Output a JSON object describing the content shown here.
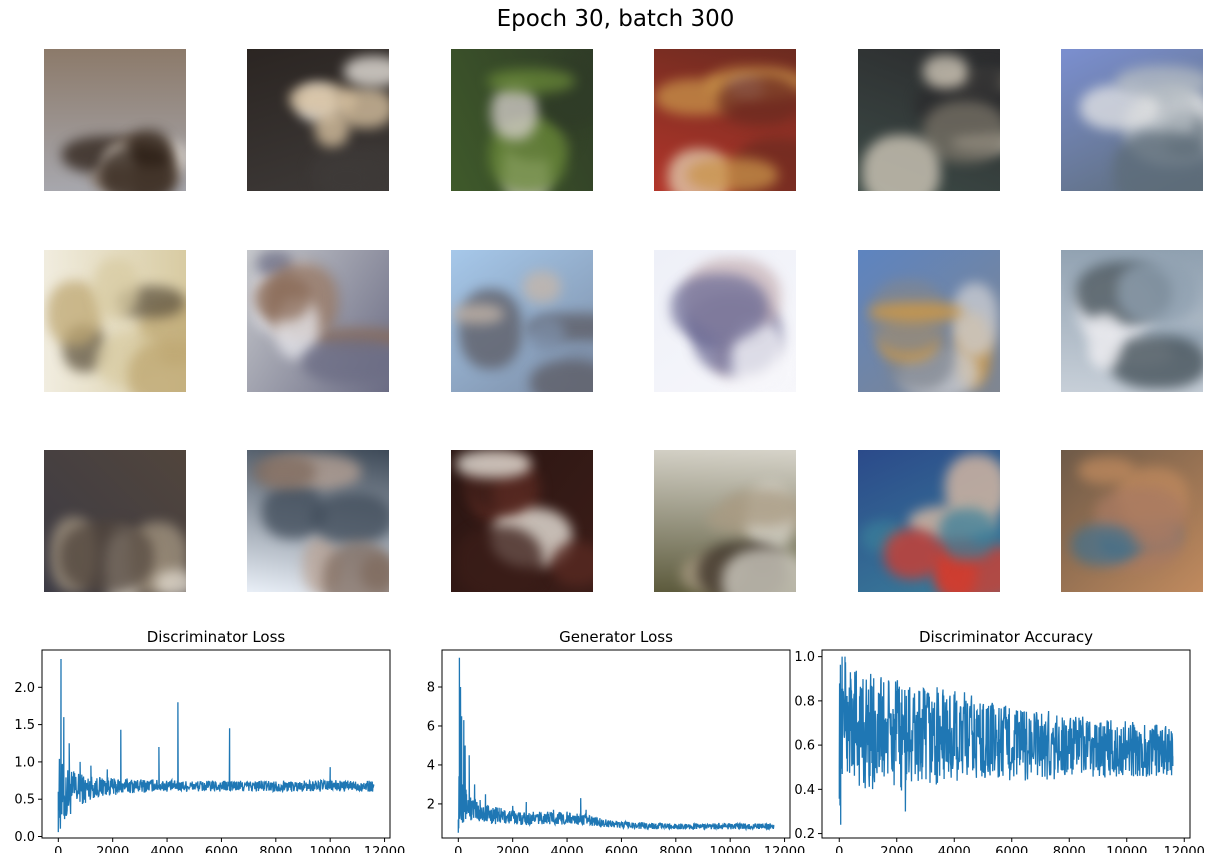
{
  "suptitle": "Epoch 30, batch 300",
  "samples": {
    "rows": 3,
    "cols": 6,
    "palettes": [
      [
        "#a7a7ad",
        "#2a1d14",
        "#e8e2da",
        "#8c7a6a"
      ],
      [
        "#2b2522",
        "#e0c9a6",
        "#f2ede6",
        "#3e3a38"
      ],
      [
        "#3f5a2a",
        "#6a8a38",
        "#d9d2cf",
        "#2f3b27"
      ],
      [
        "#b2352a",
        "#c9944a",
        "#e4d3b5",
        "#6c2b20"
      ],
      [
        "#3c4a46",
        "#d9d0c0",
        "#7a7468",
        "#2b2b2d"
      ],
      [
        "#7b8fd0",
        "#b7bec4",
        "#e6e6e6",
        "#5d6c78"
      ],
      [
        "#f1ede0",
        "#bfa873",
        "#5f5440",
        "#d8cba2"
      ],
      [
        "#c6c8cc",
        "#8a6a56",
        "#e9e9ee",
        "#6b6c84"
      ],
      [
        "#a6c8ea",
        "#5c5b63",
        "#c7b7a9",
        "#7c8da6"
      ],
      [
        "#eef0f8",
        "#6e6d96",
        "#c9b4b8",
        "#f7f7fb"
      ],
      [
        "#5d84c0",
        "#d79a3c",
        "#cfd0d4",
        "#808690"
      ],
      [
        "#c7cfd8",
        "#eaeaee",
        "#3d4a52",
        "#8fa0b0"
      ],
      [
        "#3c3b45",
        "#e6dfd3",
        "#a69883",
        "#51453c"
      ],
      [
        "#e9eff7",
        "#7f6a5d",
        "#b9a395",
        "#3e4a58"
      ],
      [
        "#2a1512",
        "#5a2a22",
        "#f5f1e8",
        "#3b1d18"
      ],
      [
        "#5c5a3c",
        "#a99b83",
        "#3a2f26",
        "#d6d3c9"
      ],
      [
        "#2b4a8a",
        "#d83a2a",
        "#e6c0a4",
        "#3a7f9a"
      ],
      [
        "#6e5a48",
        "#44708a",
        "#a97a62",
        "#c08a5e"
      ]
    ]
  },
  "colors": {
    "line": "#1f77b4",
    "axis": "#000000"
  },
  "chart_data": [
    {
      "type": "line",
      "title": "Discriminator Loss",
      "xlabel": "",
      "ylabel": "",
      "xlim": [
        -600,
        12200
      ],
      "ylim": [
        -0.02,
        2.5
      ],
      "xticks": [
        0,
        2000,
        4000,
        6000,
        8000,
        10000,
        12000
      ],
      "yticks": [
        0.0,
        0.5,
        1.0,
        1.5,
        2.0
      ],
      "ytick_labels": [
        "0.0",
        "0.5",
        "1.0",
        "1.5",
        "2.0"
      ],
      "grid": false,
      "series": [
        {
          "x": [
            0,
            50,
            100,
            150,
            200,
            300,
            400,
            500,
            600,
            700,
            800,
            1000,
            1200,
            1500,
            1800,
            2000,
            2300,
            2600,
            3000,
            3500,
            3700,
            4000,
            4400,
            5000,
            5500,
            6000,
            6300,
            7000,
            8000,
            9000,
            10000,
            10600,
            11000,
            11600
          ],
          "y": [
            0.6,
            0.25,
            2.38,
            0.5,
            1.6,
            0.5,
            1.25,
            0.55,
            0.85,
            0.55,
            1.0,
            0.45,
            0.95,
            0.6,
            0.9,
            0.7,
            1.43,
            0.6,
            0.72,
            0.7,
            1.2,
            0.62,
            1.8,
            0.68,
            0.65,
            0.66,
            1.45,
            0.68,
            0.67,
            0.68,
            0.93,
            0.68,
            0.7,
            0.68
          ],
          "band_low": [
            0.05,
            0.05,
            0.05,
            0.08,
            0.1,
            0.15,
            0.25,
            0.3,
            0.35,
            0.4,
            0.42,
            0.45,
            0.5,
            0.52,
            0.55,
            0.55,
            0.56,
            0.58,
            0.58,
            0.6,
            0.6,
            0.6,
            0.6,
            0.6,
            0.6,
            0.6,
            0.6,
            0.6,
            0.6,
            0.6,
            0.6,
            0.6,
            0.6,
            0.6
          ],
          "band_high": [
            0.95,
            1.1,
            1.05,
            1.0,
            1.0,
            0.95,
            0.92,
            0.9,
            0.88,
            0.86,
            0.85,
            0.83,
            0.82,
            0.8,
            0.8,
            0.78,
            0.78,
            0.78,
            0.77,
            0.77,
            0.76,
            0.76,
            0.75,
            0.75,
            0.75,
            0.75,
            0.75,
            0.75,
            0.75,
            0.75,
            0.76,
            0.75,
            0.75,
            0.75
          ]
        }
      ]
    },
    {
      "type": "line",
      "title": "Generator Loss",
      "xlabel": "",
      "ylabel": "",
      "xlim": [
        -600,
        12200
      ],
      "ylim": [
        0.25,
        9.9
      ],
      "xticks": [
        0,
        2000,
        4000,
        6000,
        8000,
        10000,
        12000
      ],
      "yticks": [
        2,
        4,
        6,
        8
      ],
      "ytick_labels": [
        "2",
        "4",
        "6",
        "8"
      ],
      "grid": false,
      "series": [
        {
          "x": [
            0,
            40,
            80,
            120,
            160,
            200,
            250,
            300,
            400,
            500,
            600,
            800,
            1000,
            1500,
            2000,
            2500,
            3000,
            3500,
            4000,
            4500,
            4700,
            5000,
            5500,
            6000,
            7000,
            8000,
            9000,
            10000,
            11000,
            11600
          ],
          "y": [
            1.2,
            9.5,
            8.0,
            6.5,
            3.0,
            6.3,
            5.0,
            2.5,
            4.5,
            2.0,
            3.0,
            2.2,
            2.5,
            1.8,
            1.9,
            2.1,
            1.5,
            1.7,
            1.6,
            2.3,
            1.7,
            1.3,
            1.1,
            1.0,
            0.95,
            0.95,
            0.92,
            0.95,
            0.95,
            0.92
          ],
          "band_low": [
            0.5,
            0.6,
            0.8,
            0.9,
            1.0,
            1.0,
            1.05,
            1.05,
            1.1,
            1.1,
            1.05,
            1.0,
            1.0,
            0.95,
            0.95,
            0.9,
            0.95,
            0.95,
            0.9,
            0.95,
            0.9,
            0.85,
            0.8,
            0.75,
            0.7,
            0.7,
            0.7,
            0.7,
            0.7,
            0.7
          ],
          "band_high": [
            2.0,
            6.0,
            5.0,
            4.5,
            4.0,
            3.5,
            3.0,
            2.8,
            2.6,
            2.4,
            2.3,
            2.1,
            2.0,
            1.8,
            1.7,
            1.6,
            1.6,
            1.6,
            1.55,
            1.5,
            1.45,
            1.35,
            1.2,
            1.1,
            1.05,
            1.0,
            1.0,
            1.0,
            1.0,
            1.0
          ]
        }
      ]
    },
    {
      "type": "line",
      "title": "Discriminator Accuracy",
      "xlabel": "",
      "ylabel": "",
      "xlim": [
        -600,
        12200
      ],
      "ylim": [
        0.18,
        1.03
      ],
      "xticks": [
        0,
        2000,
        4000,
        6000,
        8000,
        10000,
        12000
      ],
      "yticks": [
        0.2,
        0.4,
        0.6,
        0.8,
        1.0
      ],
      "ytick_labels": [
        "0.2",
        "0.4",
        "0.6",
        "0.8",
        "1.0"
      ],
      "grid": false,
      "series": [
        {
          "x": [
            0,
            50,
            100,
            200,
            400,
            600,
            800,
            1000,
            1500,
            2000,
            2300,
            2600,
            3000,
            3500,
            4000,
            4500,
            5000,
            5500,
            6000,
            7000,
            8000,
            9000,
            10000,
            11000,
            11600
          ],
          "y": [
            0.5,
            0.24,
            1.0,
            1.0,
            0.9,
            0.7,
            0.85,
            0.6,
            0.75,
            0.65,
            0.3,
            0.7,
            0.6,
            0.65,
            0.6,
            0.62,
            0.58,
            0.6,
            0.58,
            0.55,
            0.56,
            0.55,
            0.55,
            0.56,
            0.55
          ],
          "band_low": [
            0.35,
            0.3,
            0.45,
            0.45,
            0.45,
            0.4,
            0.4,
            0.4,
            0.4,
            0.4,
            0.38,
            0.4,
            0.4,
            0.42,
            0.42,
            0.42,
            0.43,
            0.43,
            0.43,
            0.44,
            0.44,
            0.45,
            0.45,
            0.45,
            0.46
          ],
          "band_high": [
            0.98,
            1.0,
            1.0,
            0.98,
            0.96,
            0.95,
            0.94,
            0.93,
            0.92,
            0.9,
            0.88,
            0.88,
            0.87,
            0.86,
            0.85,
            0.84,
            0.82,
            0.8,
            0.78,
            0.76,
            0.74,
            0.72,
            0.71,
            0.7,
            0.68
          ]
        }
      ]
    }
  ]
}
